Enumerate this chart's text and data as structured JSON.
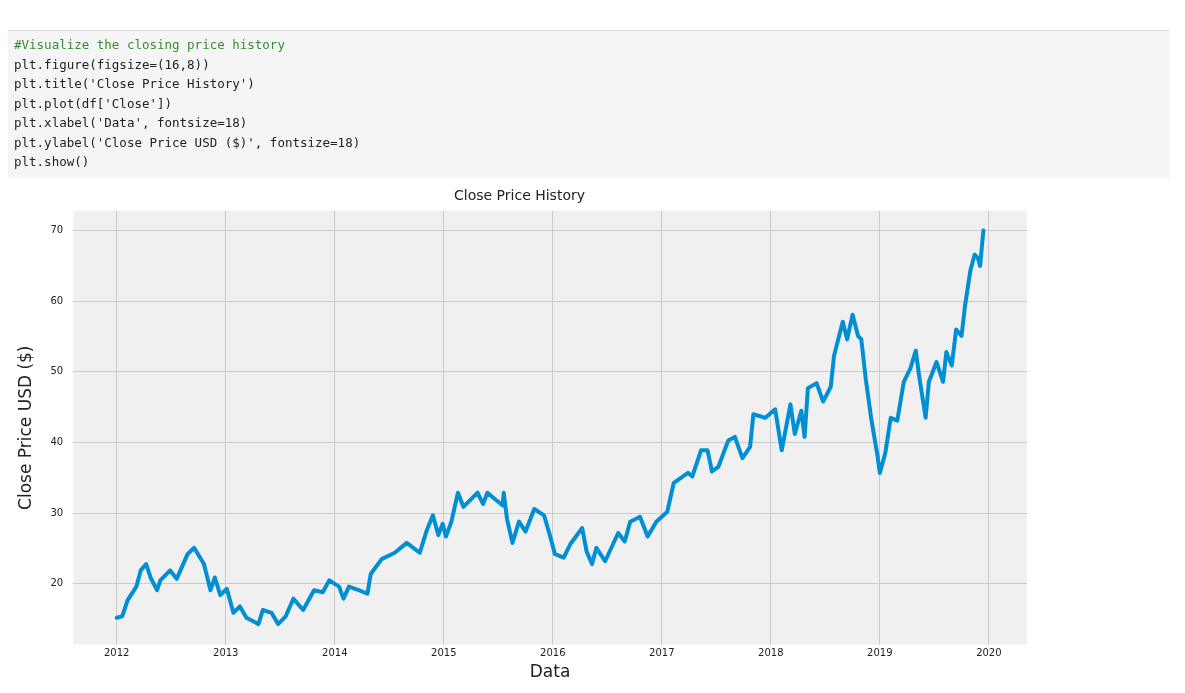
{
  "chart_data": {
    "type": "line",
    "title": "Close Price History",
    "xlabel": "Data",
    "ylabel": "Close Price USD ($)",
    "annotations": [
      "#Visualize the closing price history",
      "plt.figure(figsize=(16,8))",
      "plt.title('Close Price History')",
      "plt.plot(df['Close'])",
      "plt.xlabel('Data', fontsize=18)",
      "plt.ylabel('Close Price USD ($)', fontsize=18)",
      "plt.show()"
    ],
    "x": [
      2012.0,
      2012.05,
      2012.1,
      2012.18,
      2012.22,
      2012.27,
      2012.31,
      2012.37,
      2012.4,
      2012.49,
      2012.55,
      2012.65,
      2012.71,
      2012.8,
      2012.86,
      2012.9,
      2012.95,
      2013.01,
      2013.07,
      2013.13,
      2013.19,
      2013.3,
      2013.34,
      2013.42,
      2013.48,
      2013.55,
      2013.62,
      2013.71,
      2013.81,
      2013.89,
      2013.95,
      2014.04,
      2014.08,
      2014.13,
      2014.22,
      2014.3,
      2014.33,
      2014.43,
      2014.55,
      2014.66,
      2014.78,
      2014.84,
      2014.9,
      2014.95,
      2014.99,
      2015.02,
      2015.07,
      2015.13,
      2015.18,
      2015.31,
      2015.36,
      2015.4,
      2015.54,
      2015.55,
      2015.58,
      2015.63,
      2015.69,
      2015.75,
      2015.83,
      2015.92,
      2015.98,
      2016.02,
      2016.1,
      2016.16,
      2016.27,
      2016.31,
      2016.36,
      2016.4,
      2016.48,
      2016.6,
      2016.66,
      2016.71,
      2016.8,
      2016.87,
      2016.95,
      2017.05,
      2017.11,
      2017.24,
      2017.28,
      2017.36,
      2017.42,
      2017.46,
      2017.52,
      2017.61,
      2017.67,
      2017.74,
      2017.81,
      2017.84,
      2017.95,
      2018.04,
      2018.1,
      2018.18,
      2018.22,
      2018.28,
      2018.31,
      2018.34,
      2018.42,
      2018.48,
      2018.55,
      2018.58,
      2018.66,
      2018.7,
      2018.75,
      2018.8,
      2018.83,
      2018.87,
      2018.92,
      2018.98,
      2019.0,
      2019.05,
      2019.1,
      2019.16,
      2019.22,
      2019.28,
      2019.33,
      2019.36,
      2019.42,
      2019.45,
      2019.52,
      2019.58,
      2019.61,
      2019.66,
      2019.7,
      2019.75,
      2019.78,
      2019.83,
      2019.87,
      2019.9,
      2019.92,
      2019.94,
      2019.95
    ],
    "series": [
      {
        "color": "#008fd5",
        "values": [
          15.2,
          15.4,
          17.7,
          19.6,
          21.9,
          22.8,
          20.9,
          19.1,
          20.5,
          21.9,
          20.7,
          24.2,
          25.1,
          22.8,
          19.1,
          20.9,
          18.4,
          19.3,
          15.9,
          16.8,
          15.2,
          14.3,
          16.3,
          15.9,
          14.3,
          15.4,
          17.9,
          16.3,
          19.1,
          18.8,
          20.5,
          19.6,
          17.9,
          19.6,
          19.1,
          18.6,
          21.4,
          23.5,
          24.4,
          25.8,
          24.4,
          27.4,
          29.7,
          26.9,
          28.5,
          26.7,
          28.8,
          32.9,
          30.9,
          32.9,
          31.3,
          32.9,
          31.1,
          32.9,
          29.2,
          25.8,
          28.8,
          27.4,
          30.6,
          29.7,
          26.5,
          24.2,
          23.7,
          25.6,
          27.9,
          24.6,
          22.8,
          25.1,
          23.2,
          27.2,
          26.0,
          28.8,
          29.5,
          26.7,
          28.8,
          30.2,
          34.3,
          35.7,
          35.2,
          38.9,
          38.9,
          35.9,
          36.6,
          40.3,
          40.8,
          37.8,
          39.4,
          44.0,
          43.5,
          44.7,
          38.9,
          45.4,
          41.2,
          44.5,
          40.8,
          47.7,
          48.4,
          45.8,
          47.9,
          52.3,
          57.1,
          54.6,
          58.1,
          55.1,
          54.6,
          49.1,
          43.5,
          38.0,
          35.7,
          38.5,
          43.5,
          43.1,
          48.6,
          50.5,
          53.0,
          49.5,
          43.5,
          48.6,
          51.4,
          48.6,
          52.8,
          50.9,
          56.0,
          55.1,
          59.2,
          64.3,
          66.6,
          66.1,
          65.0,
          68.4,
          70.0
        ]
      }
    ],
    "xlim": [
      2011.6,
      2020.35
    ],
    "ylim": [
      11.4,
      72.8
    ],
    "xticks": [
      2012,
      2013,
      2014,
      2015,
      2016,
      2017,
      2018,
      2019,
      2020
    ],
    "yticks": [
      20,
      30,
      40,
      50,
      60,
      70
    ],
    "grid": true,
    "legend": false,
    "marker": "none",
    "line_style": "solid"
  }
}
